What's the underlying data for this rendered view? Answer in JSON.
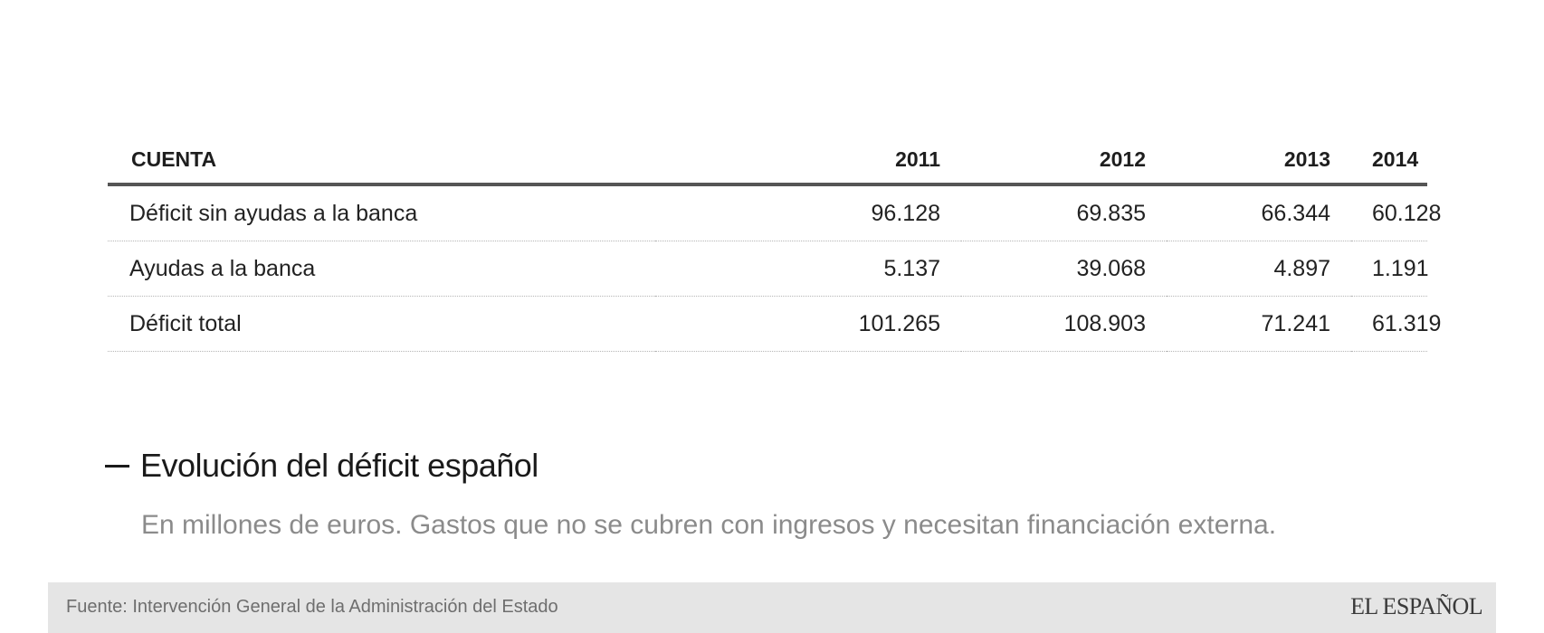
{
  "table": {
    "headers": [
      "CUENTA",
      "2011",
      "2012",
      "2013",
      "2014"
    ],
    "rows": [
      {
        "label": "Déficit sin ayudas a la banca",
        "values": [
          "96.128",
          "69.835",
          "66.344",
          "60.128"
        ]
      },
      {
        "label": "Ayudas a la banca",
        "values": [
          "5.137",
          "39.068",
          "4.897",
          "1.191"
        ]
      },
      {
        "label": "Déficit total",
        "values": [
          "101.265",
          "108.903",
          "71.241",
          "61.319"
        ]
      }
    ]
  },
  "title": "Evolución del déficit español",
  "subtitle": "En millones de euros. Gastos que no se cubren con ingresos y necesitan financiación externa.",
  "footer": {
    "source": "Fuente: Intervención General de la Administración del Estado",
    "logo": "EL ESPAÑOL"
  },
  "chart_data": {
    "type": "table",
    "columns": [
      "CUENTA",
      "2011",
      "2012",
      "2013",
      "2014"
    ],
    "rows": [
      [
        "Déficit sin ayudas a la banca",
        96128,
        69835,
        66344,
        60128
      ],
      [
        "Ayudas a la banca",
        5137,
        39068,
        4897,
        1191
      ],
      [
        "Déficit total",
        101265,
        108903,
        71241,
        61319
      ]
    ],
    "title": "Evolución del déficit español",
    "subtitle": "En millones de euros. Gastos que no se cubren con ingresos y necesitan financiación externa.",
    "source": "Fuente: Intervención General de la Administración del Estado"
  }
}
